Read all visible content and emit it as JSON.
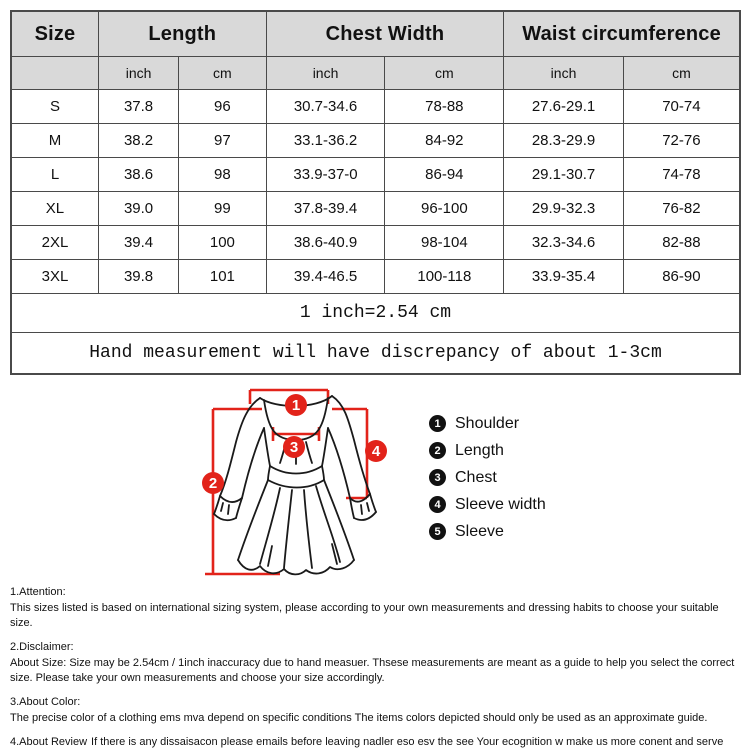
{
  "colors": {
    "accent_red": "#e2231a",
    "table_header_bg": "#d9d9d9",
    "table_border": "#4a4a4a",
    "legend_badge": "#111111"
  },
  "table": {
    "header_groups": [
      {
        "label": "Size",
        "span": 1
      },
      {
        "label": "Length",
        "span": 2
      },
      {
        "label": "Chest Width",
        "span": 2
      },
      {
        "label": "Waist circumference",
        "span": 2
      }
    ],
    "unit_row": [
      "",
      "inch",
      "cm",
      "inch",
      "cm",
      "inch",
      "cm"
    ],
    "rows": [
      [
        "S",
        "37.8",
        "96",
        "30.7-34.6",
        "78-88",
        "27.6-29.1",
        "70-74"
      ],
      [
        "M",
        "38.2",
        "97",
        "33.1-36.2",
        "84-92",
        "28.3-29.9",
        "72-76"
      ],
      [
        "L",
        "38.6",
        "98",
        "33.9-37-0",
        "86-94",
        "29.1-30.7",
        "74-78"
      ],
      [
        "XL",
        "39.0",
        "99",
        "37.8-39.4",
        "96-100",
        "29.9-32.3",
        "76-82"
      ],
      [
        "2XL",
        "39.4",
        "100",
        "38.6-40.9",
        "98-104",
        "32.3-34.6",
        "82-88"
      ],
      [
        "3XL",
        "39.8",
        "101",
        "39.4-46.5",
        "100-118",
        "33.9-35.4",
        "86-90"
      ]
    ],
    "conversion_note": "1 inch=2.54 cm",
    "measurement_note": "Hand measurement will have discrepancy of about 1-3cm"
  },
  "diagram": {
    "markers": [
      "1",
      "2",
      "3",
      "4"
    ],
    "legend": [
      {
        "num": "1",
        "label": "Shoulder"
      },
      {
        "num": "2",
        "label": "Length"
      },
      {
        "num": "3",
        "label": "Chest"
      },
      {
        "num": "4",
        "label": "Sleeve width"
      },
      {
        "num": "5",
        "label": "Sleeve"
      }
    ]
  },
  "notes": [
    {
      "title": "1.Attention:",
      "body": "This sizes listed is based on international sizing system, please according to your own measurements and dressing habits to choose your suitable size."
    },
    {
      "title": "2.Disclaimer:",
      "body": "About Size: Size may be 2.54cm / 1inch inaccuracy due to hand measuer. Thsese measurements are meant as a guide to help you select the correct size. Please take your own measurements and choose your size accordingly."
    },
    {
      "title": "3.About Color:",
      "body": "The precise color of a clothing ems mva depend on specific conditions The items colors depicted should only be used as an approximate guide."
    },
    {
      "title": "4.About Review",
      "body": "If there is any dissaisacon please emails before leaving nadler eso esv the see Your ecognition w make us more conent and serve you better.",
      "inline": true
    }
  ]
}
